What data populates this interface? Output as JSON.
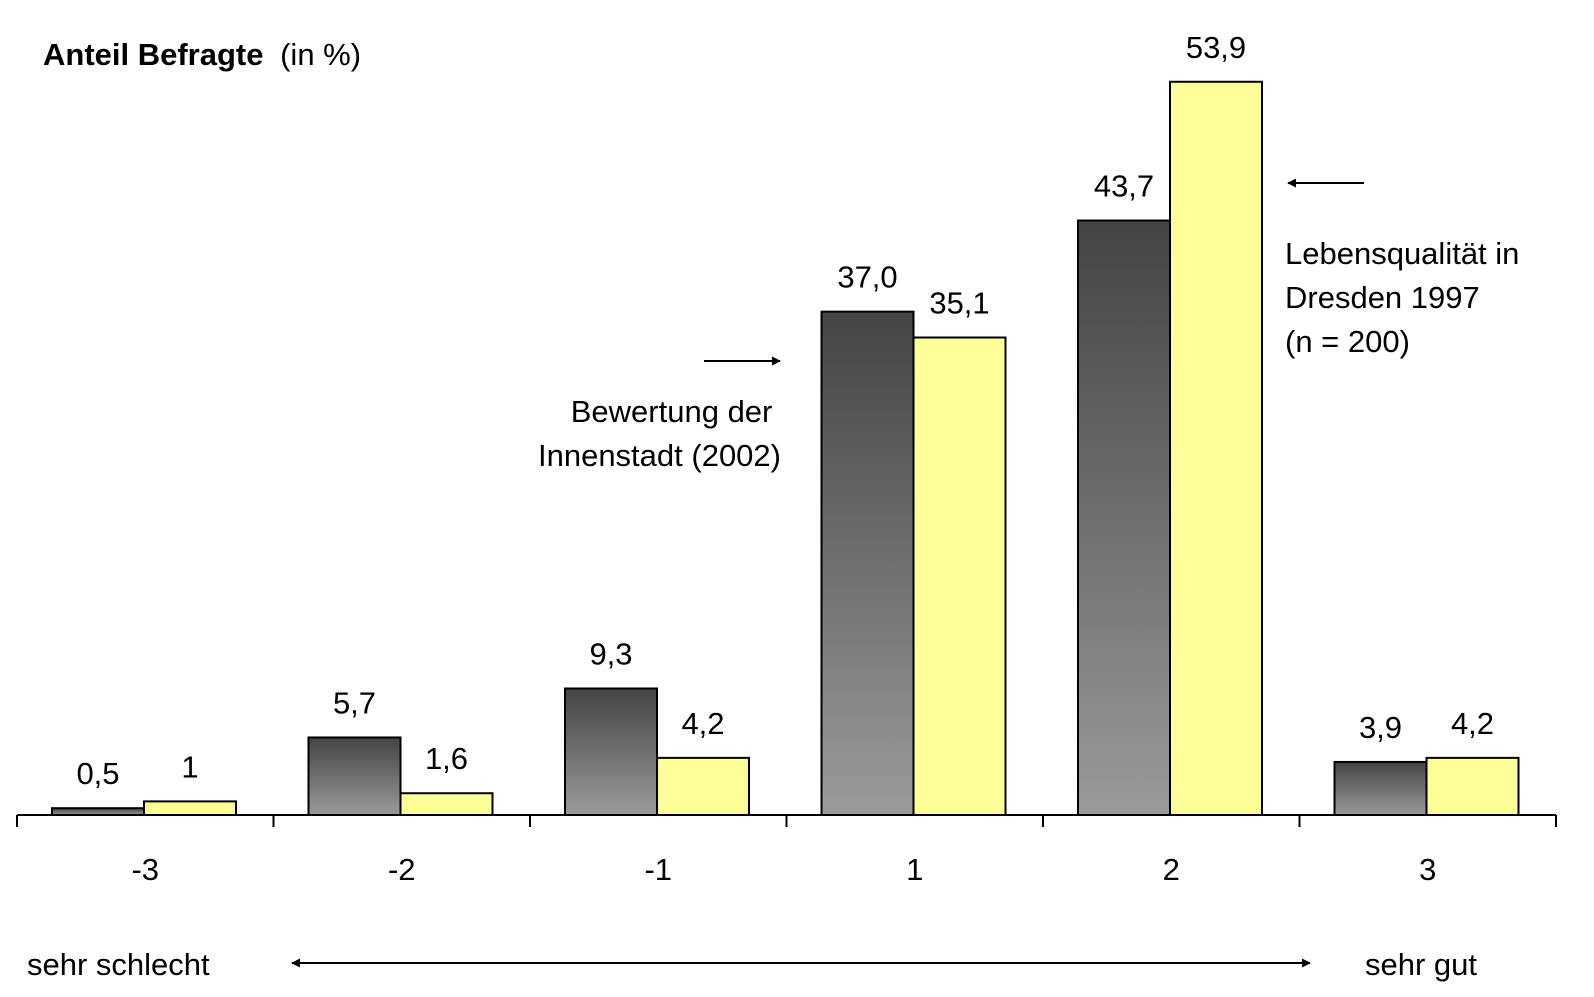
{
  "chart_data": {
    "type": "bar",
    "ylabel_bold": "Anteil Befragte",
    "ylabel_unit": "(in %)",
    "categories": [
      "-3",
      "-2",
      "-1",
      "1",
      "2",
      "3"
    ],
    "series": [
      {
        "values": [
          0.5,
          5.7,
          9.3,
          37.0,
          43.7,
          3.9
        ],
        "labels": [
          "0,5",
          "5,7",
          "9,3",
          "37,0",
          "43,7",
          "3,9"
        ],
        "color": "#444444",
        "gradient_to": "#9a9a9a"
      },
      {
        "values": [
          1,
          1.6,
          4.2,
          35.1,
          53.9,
          4.2
        ],
        "labels": [
          "1",
          "1,6",
          "4,2",
          "35,1",
          "53,9",
          "4,2"
        ],
        "color": "#ffff99"
      }
    ],
    "ylim": [
      0,
      55.5
    ],
    "grid": false,
    "annotations": {
      "series1_lines": [
        "Bewertung der",
        "Innenstadt (2002)"
      ],
      "series2_lines": [
        "Lebensqualität in",
        "Dresden 1997",
        "(n = 200)"
      ]
    },
    "scale": {
      "left": "sehr schlecht",
      "right": "sehr gut"
    }
  }
}
